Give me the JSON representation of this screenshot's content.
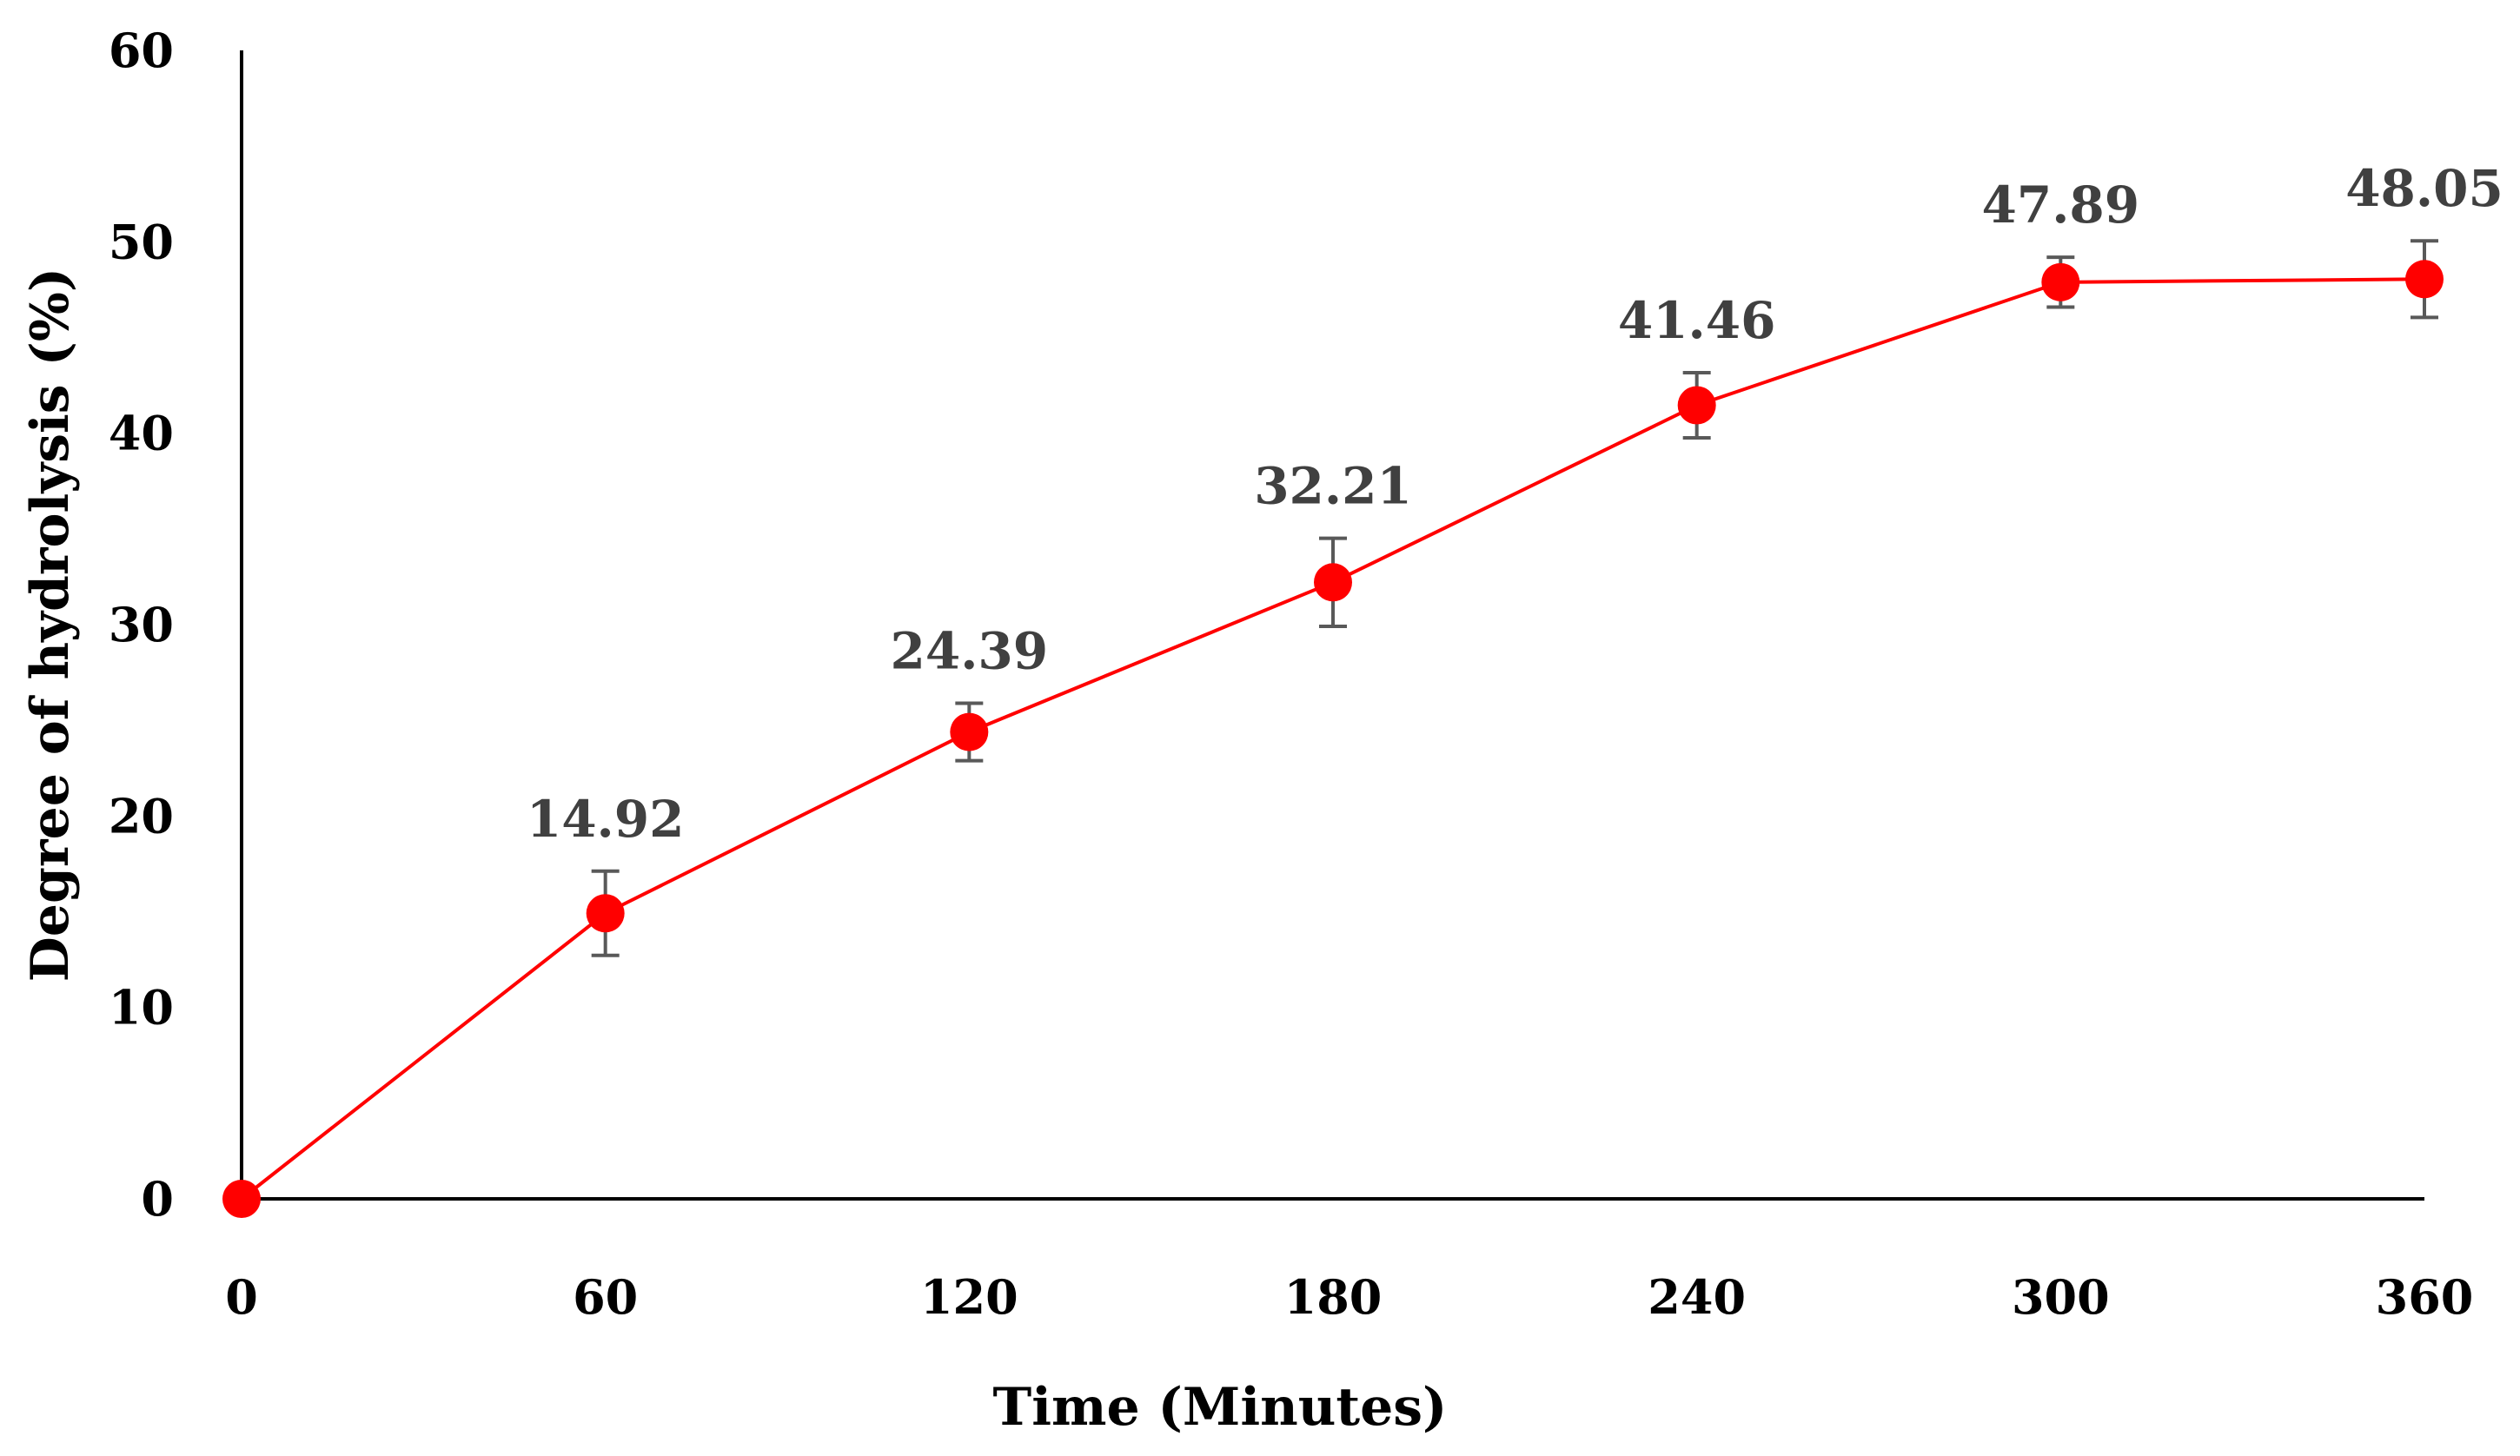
{
  "chart_data": {
    "type": "line",
    "title": "",
    "xlabel": "Time (Minutes)",
    "ylabel": "Degree of hydrolysis (%)",
    "x": [
      0,
      60,
      120,
      180,
      240,
      300,
      360
    ],
    "xticks": [
      "0",
      "60",
      "120",
      "180",
      "240",
      "300",
      "360"
    ],
    "yticks": [
      "0",
      "10",
      "20",
      "30",
      "40",
      "50",
      "60"
    ],
    "xlim": [
      0,
      360
    ],
    "ylim": [
      0,
      60
    ],
    "grid": false,
    "legend": "none",
    "series": [
      {
        "values": [
          0,
          14.92,
          24.39,
          32.21,
          41.46,
          47.89,
          48.05
        ],
        "error": [
          0,
          2.2,
          1.5,
          2.3,
          1.7,
          1.3,
          2.0
        ],
        "labels": [
          "",
          "14.92",
          "24.39",
          "32.21",
          "41.46",
          "47.89",
          "48.05"
        ],
        "color": "#ff0000"
      }
    ],
    "colors": {
      "line": "#ff0000",
      "marker": "#ff0000",
      "error_bar": "#595959",
      "data_label": "#404040",
      "axis": "#000000"
    }
  }
}
